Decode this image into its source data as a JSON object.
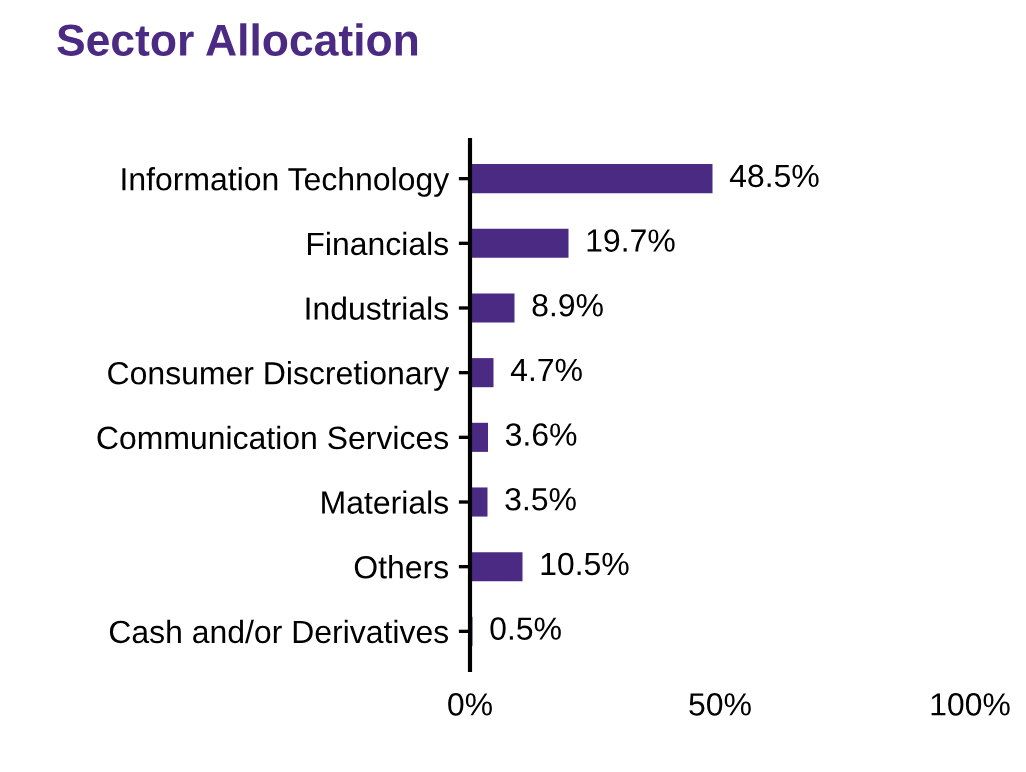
{
  "chart_data": {
    "type": "bar",
    "title": "Sector Allocation",
    "orientation": "horizontal",
    "categories": [
      "Information Technology",
      "Financials",
      "Industrials",
      "Consumer Discretionary",
      "Communication Services",
      "Materials",
      "Others",
      "Cash and/or Derivatives"
    ],
    "values": [
      48.5,
      19.7,
      8.9,
      4.7,
      3.6,
      3.5,
      10.5,
      0.5
    ],
    "value_labels": [
      "48.5%",
      "19.7%",
      "8.9%",
      "4.7%",
      "3.6%",
      "3.5%",
      "10.5%",
      "0.5%"
    ],
    "color": "#4b2a84",
    "xlim": [
      0,
      100
    ],
    "xticks": [
      {
        "value": 0,
        "label": "0%"
      },
      {
        "value": 50,
        "label": "50%"
      },
      {
        "value": 100,
        "label": "100%"
      }
    ],
    "grid": false
  }
}
